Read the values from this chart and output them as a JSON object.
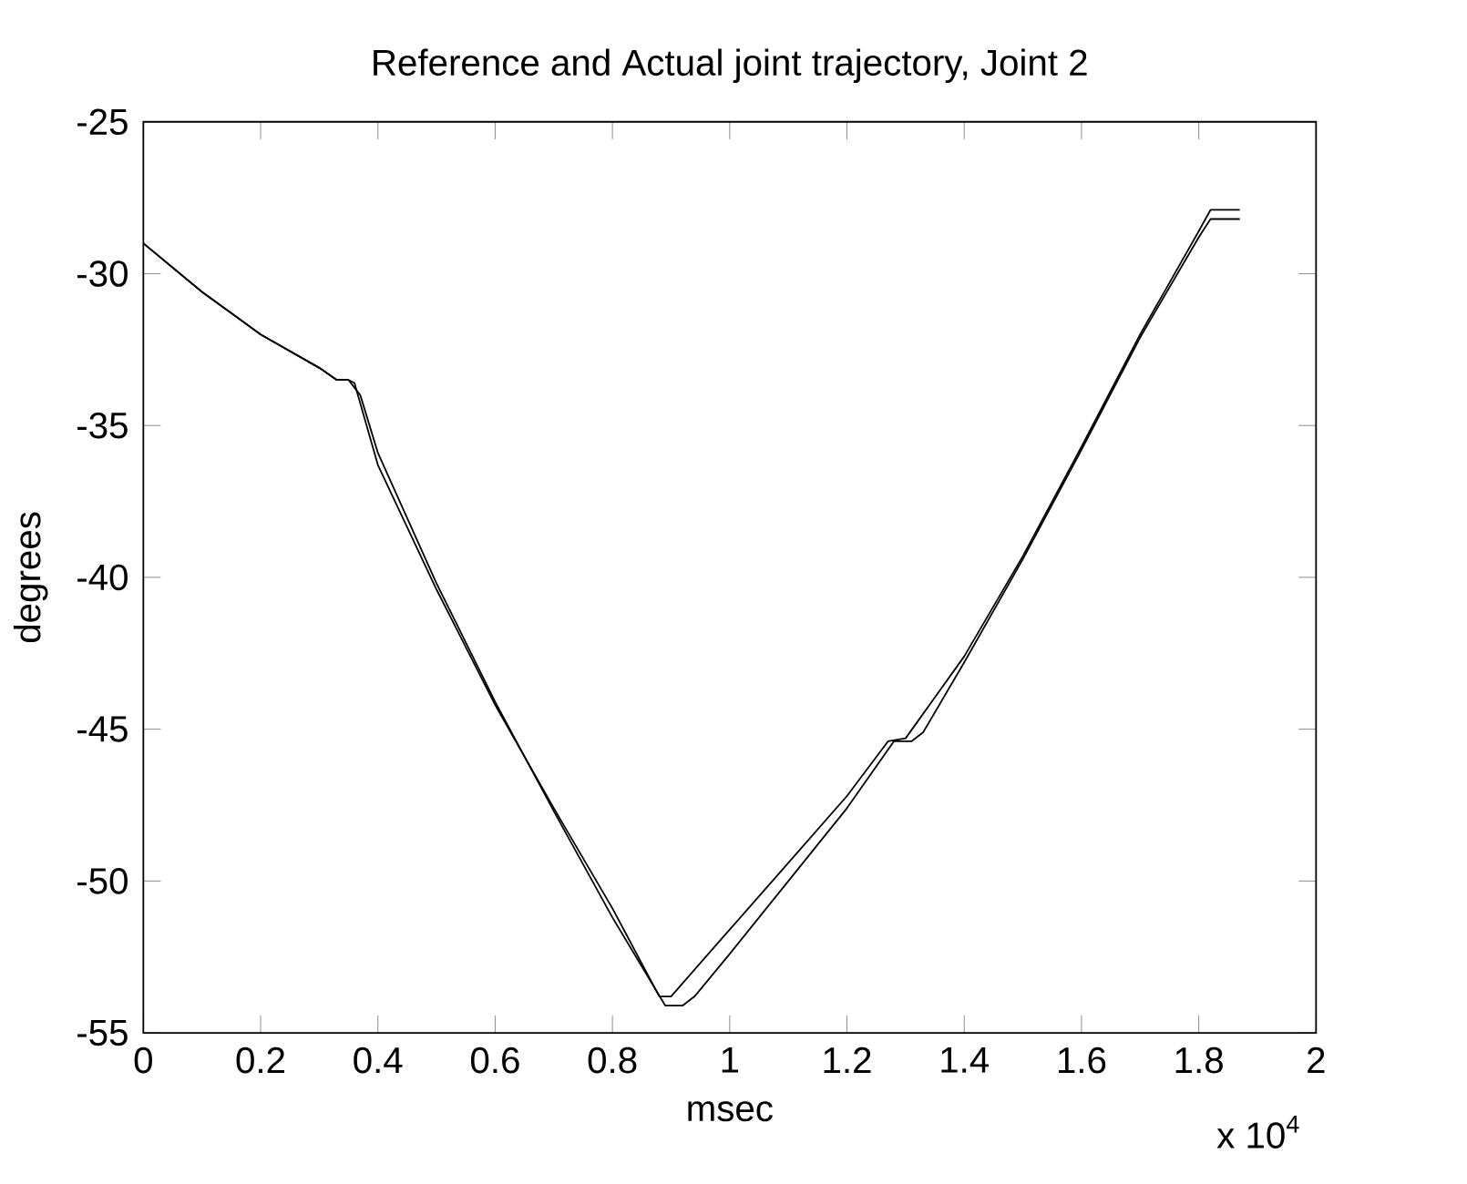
{
  "chart_data": {
    "type": "line",
    "title": "Reference and Actual joint trajectory, Joint 2",
    "xlabel": "msec",
    "ylabel": "degrees",
    "annotations": [
      "x 10$^{4}$"
    ],
    "xlim": [
      0,
      2
    ],
    "ylim": [
      -55,
      -25
    ],
    "xticks": [
      0,
      0.2,
      0.4,
      0.6,
      0.8,
      1,
      1.2,
      1.4,
      1.6,
      1.8,
      2
    ],
    "yticks": [
      -55,
      -50,
      -45,
      -40,
      -35,
      -30,
      -25
    ],
    "grid": false,
    "series": [
      {
        "color": "#000000",
        "x": [
          0,
          0.1,
          0.2,
          0.3,
          0.33,
          0.35,
          0.36,
          0.4,
          0.5,
          0.6,
          0.7,
          0.8,
          0.88,
          0.9,
          1.0,
          1.1,
          1.2,
          1.27,
          1.3,
          1.4,
          1.5,
          1.6,
          1.7,
          1.8,
          1.82,
          1.87
        ],
        "values": [
          -29.0,
          -30.6,
          -32.0,
          -33.1,
          -33.5,
          -33.5,
          -33.6,
          -36.3,
          -40.4,
          -44.2,
          -47.6,
          -50.9,
          -53.8,
          -53.8,
          -51.6,
          -49.4,
          -47.2,
          -45.4,
          -45.3,
          -42.6,
          -39.3,
          -35.7,
          -32.0,
          -28.6,
          -27.9,
          -27.9
        ]
      },
      {
        "color": "#000000",
        "x": [
          0,
          0.1,
          0.2,
          0.3,
          0.33,
          0.35,
          0.37,
          0.4,
          0.5,
          0.6,
          0.7,
          0.8,
          0.89,
          0.92,
          0.94,
          1.0,
          1.1,
          1.2,
          1.28,
          1.31,
          1.33,
          1.4,
          1.5,
          1.6,
          1.7,
          1.8,
          1.82,
          1.87
        ],
        "values": [
          -29.0,
          -30.6,
          -32.0,
          -33.1,
          -33.5,
          -33.5,
          -34.0,
          -35.9,
          -40.2,
          -44.1,
          -47.7,
          -51.2,
          -54.1,
          -54.1,
          -53.8,
          -52.4,
          -50.0,
          -47.6,
          -45.4,
          -45.4,
          -45.1,
          -42.8,
          -39.4,
          -35.8,
          -32.1,
          -28.8,
          -28.2,
          -28.2
        ]
      }
    ]
  }
}
